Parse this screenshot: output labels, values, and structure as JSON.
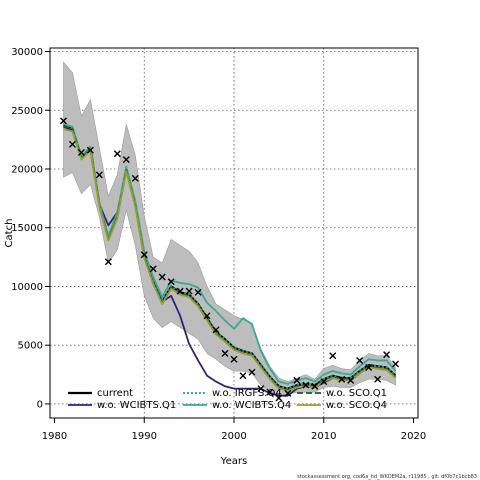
{
  "chart_data": {
    "type": "line",
    "xlabel": "Years",
    "ylabel": "Catch",
    "xlim": [
      1979.5,
      2020.5
    ],
    "ylim": [
      -1200,
      30300
    ],
    "x_ticks": [
      1980,
      1990,
      2000,
      2010,
      2020
    ],
    "y_ticks": [
      0,
      5000,
      10000,
      15000,
      20000,
      25000,
      30000
    ],
    "grid": true,
    "legend_position": "bottom",
    "footer_text": "stockassessment.org,  cod6a_hd_WKDEM2a,  r11985 ,  git:  df0b7c1bcb83",
    "years": [
      1981,
      1982,
      1983,
      1984,
      1985,
      1986,
      1987,
      1988,
      1989,
      1990,
      1991,
      1992,
      1993,
      1994,
      1995,
      1996,
      1997,
      1998,
      1999,
      2000,
      2001,
      2002,
      2003,
      2004,
      2005,
      2006,
      2007,
      2008,
      2009,
      2010,
      2011,
      2012,
      2013,
      2014,
      2015,
      2016,
      2017,
      2018
    ],
    "band": {
      "upper": [
        29100,
        28200,
        24500,
        25900,
        21800,
        17700,
        19500,
        23800,
        21200,
        16000,
        12500,
        12000,
        14000,
        13500,
        13000,
        12000,
        10000,
        8500,
        8000,
        7500,
        7200,
        6800,
        4700,
        3200,
        2200,
        1900,
        2200,
        2500,
        2100,
        3000,
        3300,
        3000,
        2900,
        3700,
        4300,
        4100,
        4100,
        3100
      ],
      "lower": [
        19300,
        19700,
        17900,
        18700,
        15900,
        12000,
        13100,
        16500,
        13500,
        9200,
        7300,
        6500,
        7000,
        6500,
        6000,
        5500,
        4300,
        3800,
        3200,
        2800,
        2800,
        2600,
        1600,
        1000,
        800,
        800,
        1000,
        1000,
        1000,
        1400,
        1500,
        1400,
        1400,
        1800,
        2100,
        2100,
        2000,
        1600
      ]
    },
    "series": [
      {
        "name": "current",
        "color": "#000000",
        "dash": "solid",
        "width": 2.2,
        "values": [
          23800,
          23500,
          21000,
          21800,
          17000,
          14100,
          16000,
          20000,
          17000,
          12600,
          10400,
          8700,
          10000,
          9500,
          9300,
          8500,
          7300,
          6100,
          5500,
          4800,
          4500,
          4300,
          3300,
          2300,
          1500,
          1300,
          1600,
          1700,
          1600,
          2100,
          2400,
          2200,
          2200,
          2800,
          3300,
          3200,
          3100,
          2400
        ]
      },
      {
        "name": "w.o. WCIBTS.Q1",
        "color": "#2c2577",
        "dash": "solid",
        "width": 1.8,
        "values": [
          23600,
          23300,
          21000,
          21600,
          17000,
          15200,
          16300,
          20000,
          17000,
          12600,
          10500,
          8700,
          9200,
          7500,
          5100,
          3700,
          2400,
          1900,
          1500,
          1300,
          1300,
          1300,
          1300,
          900,
          700,
          700,
          1300,
          1500,
          1400,
          1800,
          2200,
          2100,
          2000,
          2600,
          3200,
          3000,
          2900,
          2300
        ]
      },
      {
        "name": "w.o. IRGFS.Q4",
        "color": "#1a9fae",
        "dash": "dotted",
        "width": 1.8,
        "values": [
          23800,
          23500,
          21000,
          21800,
          17000,
          14100,
          16000,
          20000,
          17000,
          12600,
          10400,
          8700,
          10000,
          9500,
          9300,
          8500,
          7300,
          6100,
          5500,
          4800,
          4500,
          4300,
          3300,
          2300,
          1500,
          1300,
          1600,
          1700,
          1600,
          2100,
          2400,
          2200,
          2200,
          2800,
          3300,
          3200,
          3100,
          2400
        ]
      },
      {
        "name": "w.o. WCIBTS.Q4",
        "color": "#3aaa96",
        "dash": "solid",
        "width": 1.8,
        "values": [
          23800,
          23600,
          21100,
          21900,
          17100,
          14300,
          16300,
          20200,
          17300,
          13000,
          10800,
          9100,
          10500,
          10300,
          10200,
          9900,
          8600,
          7900,
          7100,
          6400,
          7300,
          6800,
          4500,
          3000,
          1900,
          1700,
          2000,
          2200,
          1900,
          2500,
          2800,
          2600,
          2500,
          3200,
          3800,
          3700,
          3700,
          2800
        ]
      },
      {
        "name": "w.o. SCO.Q1",
        "color": "#1f5e2e",
        "dash": "dashed",
        "width": 1.8,
        "values": [
          23700,
          23400,
          20900,
          21700,
          16900,
          14000,
          15900,
          19900,
          16900,
          12500,
          10300,
          8600,
          9900,
          9400,
          9200,
          8400,
          7200,
          6000,
          5400,
          4700,
          4400,
          4200,
          3200,
          2200,
          1400,
          1200,
          1500,
          1600,
          1500,
          2000,
          2300,
          2100,
          2100,
          2700,
          3200,
          3100,
          3000,
          2300
        ]
      },
      {
        "name": "w.o. SCO.Q4",
        "color": "#9c9c2c",
        "dash": "solid",
        "width": 1.8,
        "values": [
          23400,
          23200,
          20800,
          21600,
          16800,
          13900,
          15800,
          19800,
          16800,
          12400,
          10200,
          8500,
          9800,
          9300,
          9100,
          8300,
          7100,
          5900,
          5300,
          4600,
          4300,
          4100,
          3100,
          2100,
          1300,
          1100,
          1400,
          1500,
          1400,
          1900,
          2200,
          2000,
          2000,
          2600,
          3100,
          3000,
          2900,
          2200
        ]
      }
    ],
    "observed": {
      "marker": "x",
      "years": [
        1981,
        1982,
        1983,
        1984,
        1985,
        1986,
        1987,
        1988,
        1989,
        1990,
        1991,
        1992,
        1993,
        1994,
        1995,
        1996,
        1997,
        1998,
        1999,
        2000,
        2001,
        2002,
        2003,
        2004,
        2005,
        2006,
        2007,
        2008,
        2009,
        2010,
        2011,
        2012,
        2013,
        2014,
        2015,
        2016,
        2017,
        2018
      ],
      "values": [
        24100,
        22100,
        21400,
        21600,
        19500,
        12100,
        21300,
        20800,
        19200,
        12700,
        11500,
        10800,
        10400,
        9600,
        9600,
        9500,
        7500,
        6300,
        4300,
        3800,
        2400,
        2700,
        1300,
        1000,
        500,
        900,
        2000,
        1600,
        1500,
        1900,
        4100,
        2100,
        2000,
        3700,
        3100,
        2100,
        4200,
        3400
      ]
    },
    "legend": {
      "entries": [
        {
          "label": "current",
          "series": 0
        },
        {
          "label": "w.o. WCIBTS.Q1",
          "series": 1
        },
        {
          "label": "w.o. IRGFS.Q4",
          "series": 2
        },
        {
          "label": "w.o. WCIBTS.Q4",
          "series": 3
        },
        {
          "label": "w.o. SCO.Q1",
          "series": 4
        },
        {
          "label": "w.o. SCO.Q4",
          "series": 5
        }
      ]
    }
  }
}
